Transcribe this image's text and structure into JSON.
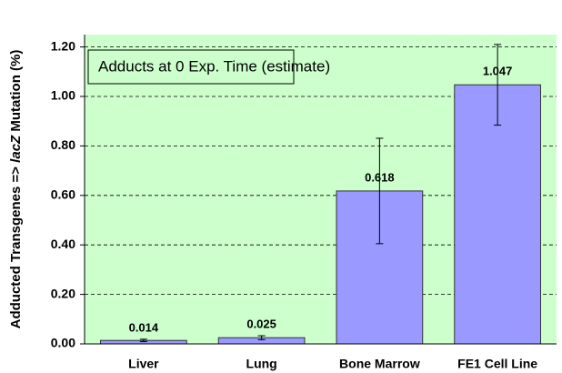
{
  "chart_data": {
    "type": "bar",
    "ylabel_parts": [
      "Adducted Transgenes => ",
      "lacZ",
      " Mutation (%)"
    ],
    "annotation": "Adducts at 0 Exp. Time (estimate)",
    "categories": [
      "Liver",
      "Lung",
      "Bone Marrow",
      "FE1 Cell Line"
    ],
    "values": [
      0.014,
      0.025,
      0.618,
      1.047
    ],
    "errors": [
      0.005,
      0.008,
      0.213,
      0.163
    ],
    "color": "#9999ff",
    "background": "#ccffcc",
    "ylim": [
      0,
      1.25
    ],
    "yticks": [
      {
        "value": 0,
        "label": "0.00"
      },
      {
        "value": 0.2,
        "label": "0.20"
      },
      {
        "value": 0.4,
        "label": "0.40"
      },
      {
        "value": 0.6,
        "label": "0.60"
      },
      {
        "value": 0.8,
        "label": "0.80"
      },
      {
        "value": 1,
        "label": "1.00"
      },
      {
        "value": 1.2,
        "label": "1.20"
      }
    ],
    "grid": true
  }
}
